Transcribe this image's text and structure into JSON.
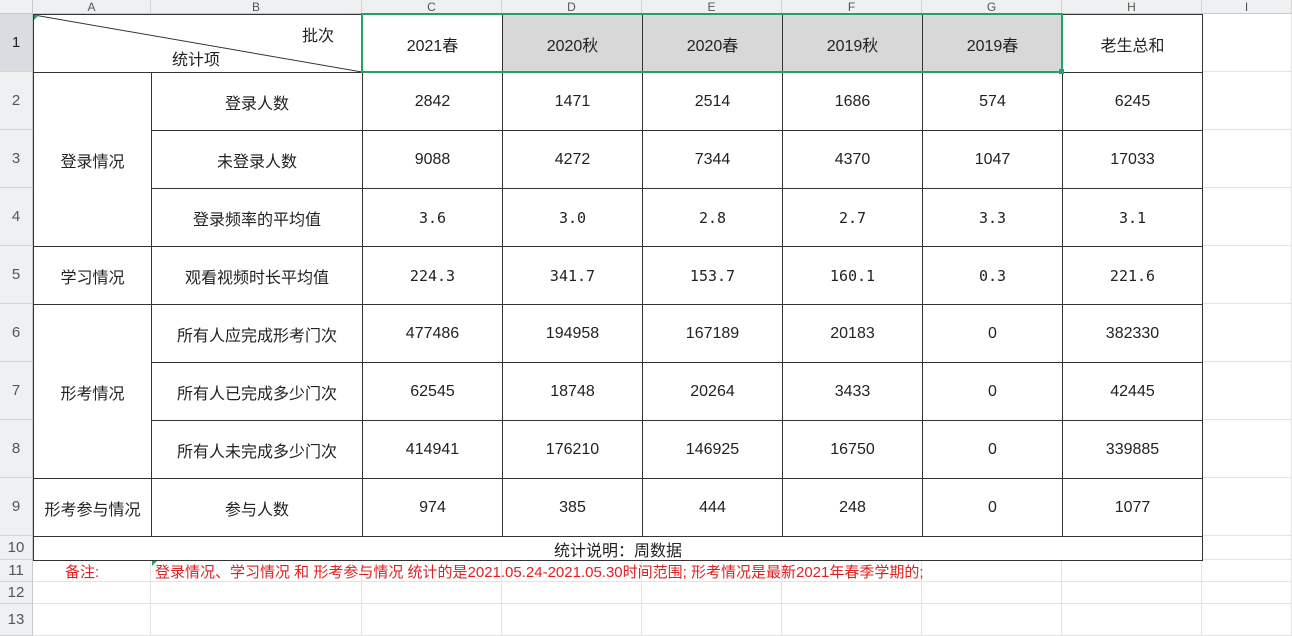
{
  "columns": [
    "A",
    "B",
    "C",
    "D",
    "E",
    "F",
    "G",
    "H",
    "I"
  ],
  "rows": [
    "1",
    "2",
    "3",
    "4",
    "5",
    "6",
    "7",
    "8",
    "9",
    "10",
    "11",
    "12",
    "13"
  ],
  "header": {
    "diag_top": "批次",
    "diag_bottom": "统计项",
    "batches": [
      "2021春",
      "2020秋",
      "2020春",
      "2019秋",
      "2019春",
      "老生总和"
    ]
  },
  "groups": [
    "登录情况",
    "学习情况",
    "形考情况",
    "形考参与情况"
  ],
  "items": [
    {
      "label": "登录人数",
      "values": [
        "2842",
        "1471",
        "2514",
        "1686",
        "574",
        "6245"
      ]
    },
    {
      "label": "未登录人数",
      "values": [
        "9088",
        "4272",
        "7344",
        "4370",
        "1047",
        "17033"
      ]
    },
    {
      "label": "登录频率的平均值",
      "values": [
        "3.6",
        "3.0",
        "2.8",
        "2.7",
        "3.3",
        "3.1"
      ]
    },
    {
      "label": "观看视频时长平均值",
      "values": [
        "224.3",
        "341.7",
        "153.7",
        "160.1",
        "0.3",
        "221.6"
      ]
    },
    {
      "label": "所有人应完成形考门次",
      "values": [
        "477486",
        "194958",
        "167189",
        "20183",
        "0",
        "382330"
      ]
    },
    {
      "label": "所有人已完成多少门次",
      "values": [
        "62545",
        "18748",
        "20264",
        "3433",
        "0",
        "42445"
      ]
    },
    {
      "label": "所有人未完成多少门次",
      "values": [
        "414941",
        "176210",
        "146925",
        "16750",
        "0",
        "339885"
      ]
    },
    {
      "label": "参与人数",
      "values": [
        "974",
        "385",
        "444",
        "248",
        "0",
        "1077"
      ]
    }
  ],
  "note_row": "统计说明：周数据",
  "remark_label": "备注:",
  "remark_text": "登录情况、学习情况 和 形考参与情况 统计的是2021.05.24-2021.05.30时间范围;    形考情况是最新2021年春季学期的;",
  "colors": {
    "selection": "#21a366",
    "remark": "#e02020",
    "shaded": "#d8d8d8"
  }
}
